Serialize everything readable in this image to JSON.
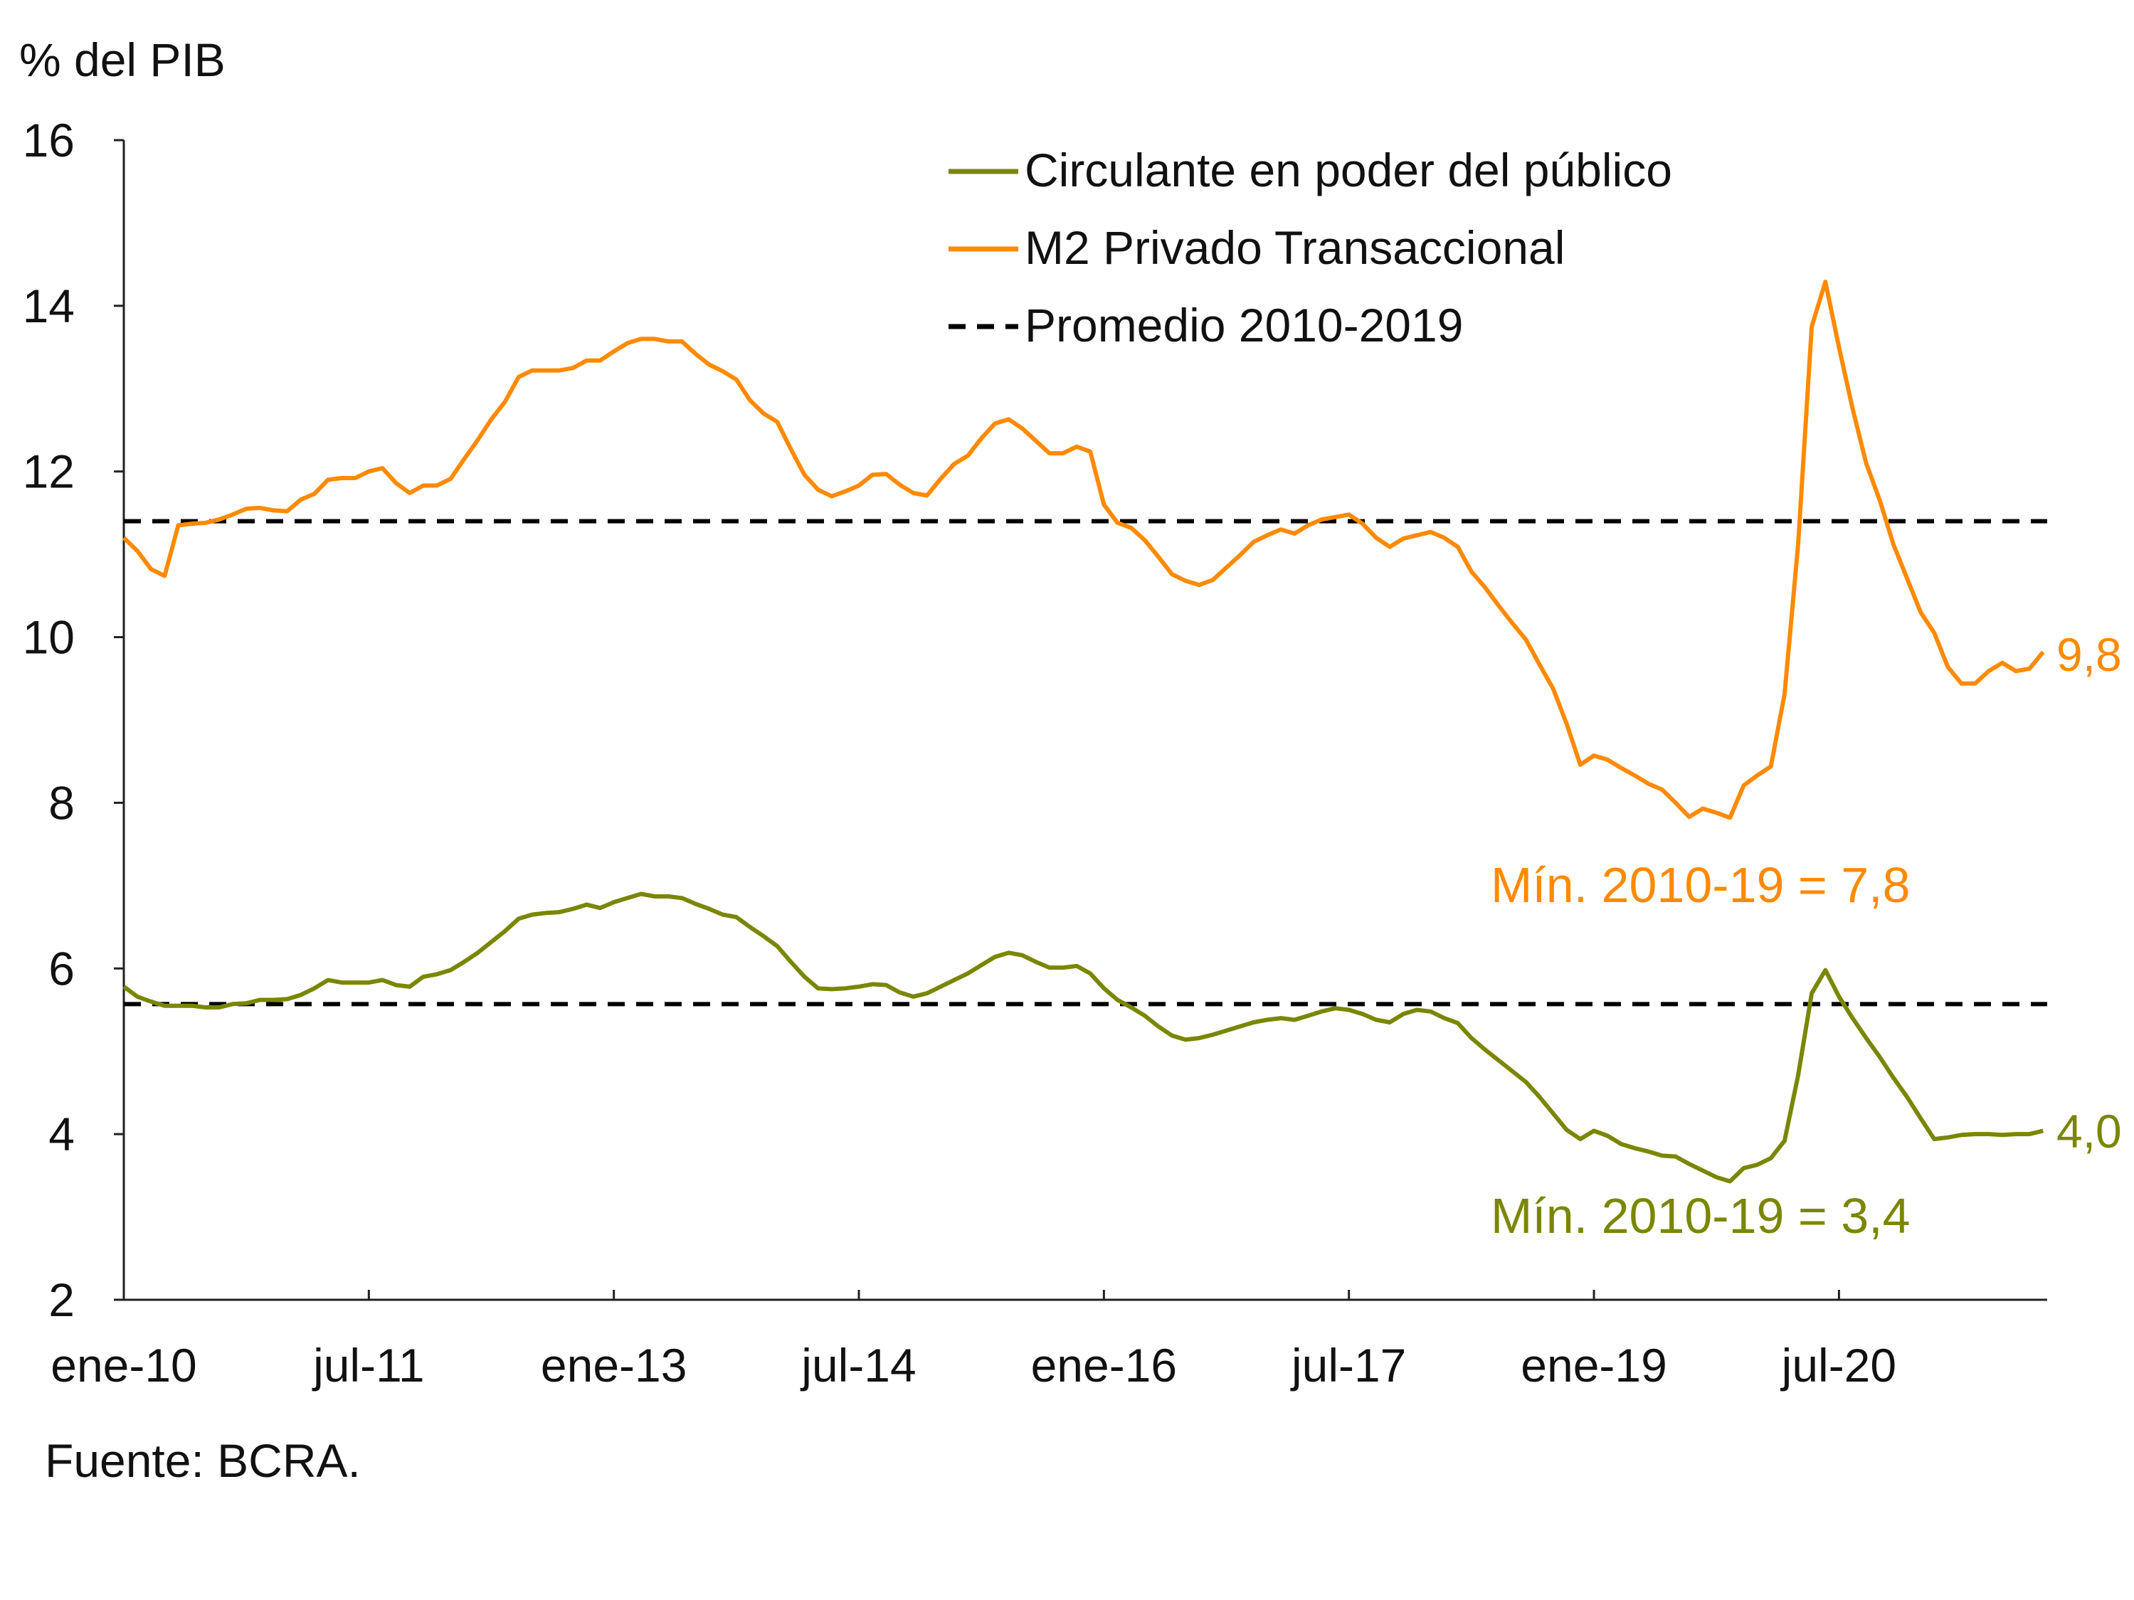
{
  "chart_data": {
    "type": "line",
    "ylabel": "% del PIB",
    "ylim": [
      2,
      16
    ],
    "yticks": [
      "16",
      "14",
      "12",
      "10",
      "8",
      "6",
      "4",
      "2"
    ],
    "xticks": [
      "ene-10",
      "jul-11",
      "ene-13",
      "jul-14",
      "ene-16",
      "jul-17",
      "ene-19",
      "jul-20"
    ],
    "xtick_dates": [
      "2010-01",
      "2011-07",
      "2013-01",
      "2014-07",
      "2016-01",
      "2017-07",
      "2019-01",
      "2020-07"
    ],
    "grid": false,
    "legend_position": "top-right",
    "source": "Fuente: BCRA.",
    "x_frequency": "monthly",
    "x": [
      "2010-01",
      "2010-02",
      "2010-03",
      "2010-04",
      "2010-05",
      "2010-06",
      "2010-07",
      "2010-08",
      "2010-09",
      "2010-10",
      "2010-11",
      "2010-12",
      "2011-01",
      "2011-02",
      "2011-03",
      "2011-04",
      "2011-05",
      "2011-06",
      "2011-07",
      "2011-08",
      "2011-09",
      "2011-10",
      "2011-11",
      "2011-12",
      "2012-01",
      "2012-02",
      "2012-03",
      "2012-04",
      "2012-05",
      "2012-06",
      "2012-07",
      "2012-08",
      "2012-09",
      "2012-10",
      "2012-11",
      "2012-12",
      "2013-01",
      "2013-02",
      "2013-03",
      "2013-04",
      "2013-05",
      "2013-06",
      "2013-07",
      "2013-08",
      "2013-09",
      "2013-10",
      "2013-11",
      "2013-12",
      "2014-01",
      "2014-02",
      "2014-03",
      "2014-04",
      "2014-05",
      "2014-06",
      "2014-07",
      "2014-08",
      "2014-09",
      "2014-10",
      "2014-11",
      "2014-12",
      "2015-01",
      "2015-02",
      "2015-03",
      "2015-04",
      "2015-05",
      "2015-06",
      "2015-07",
      "2015-08",
      "2015-09",
      "2015-10",
      "2015-11",
      "2015-12",
      "2016-01",
      "2016-02",
      "2016-03",
      "2016-04",
      "2016-05",
      "2016-06",
      "2016-07",
      "2016-08",
      "2016-09",
      "2016-10",
      "2016-11",
      "2016-12",
      "2017-01",
      "2017-02",
      "2017-03",
      "2017-04",
      "2017-05",
      "2017-06",
      "2017-07",
      "2017-08",
      "2017-09",
      "2017-10",
      "2017-11",
      "2017-12",
      "2018-01",
      "2018-02",
      "2018-03",
      "2018-04",
      "2018-05",
      "2018-06",
      "2018-07",
      "2018-08",
      "2018-09",
      "2018-10",
      "2018-11",
      "2018-12",
      "2019-01",
      "2019-02",
      "2019-03",
      "2019-04",
      "2019-05",
      "2019-06",
      "2019-07",
      "2019-08",
      "2019-09",
      "2019-10",
      "2019-11",
      "2019-12",
      "2020-01",
      "2020-02",
      "2020-03",
      "2020-04",
      "2020-05",
      "2020-06",
      "2020-07",
      "2020-08",
      "2020-09",
      "2020-10",
      "2020-11",
      "2020-12",
      "2021-01",
      "2021-02",
      "2021-03",
      "2021-04",
      "2021-05",
      "2021-06",
      "2021-07",
      "2021-08",
      "2021-09",
      "2021-10"
    ],
    "series": [
      {
        "name": "Circulante en poder del público",
        "color": "#7B8600",
        "style": "solid",
        "values": [
          5.78,
          5.66,
          5.6,
          5.55,
          5.55,
          5.55,
          5.53,
          5.53,
          5.57,
          5.58,
          5.62,
          5.62,
          5.63,
          5.68,
          5.76,
          5.86,
          5.83,
          5.83,
          5.83,
          5.86,
          5.8,
          5.78,
          5.9,
          5.93,
          5.98,
          6.08,
          6.19,
          6.32,
          6.45,
          6.6,
          6.65,
          6.67,
          6.68,
          6.72,
          6.77,
          6.73,
          6.8,
          6.85,
          6.9,
          6.87,
          6.87,
          6.85,
          6.78,
          6.72,
          6.65,
          6.62,
          6.5,
          6.39,
          6.27,
          6.08,
          5.9,
          5.76,
          5.75,
          5.76,
          5.78,
          5.81,
          5.8,
          5.71,
          5.66,
          5.7,
          5.78,
          5.86,
          5.94,
          6.04,
          6.14,
          6.19,
          6.16,
          6.08,
          6.01,
          6.01,
          6.03,
          5.94,
          5.76,
          5.62,
          5.53,
          5.43,
          5.3,
          5.19,
          5.14,
          5.16,
          5.2,
          5.25,
          5.3,
          5.35,
          5.38,
          5.4,
          5.38,
          5.43,
          5.48,
          5.52,
          5.5,
          5.45,
          5.38,
          5.35,
          5.45,
          5.5,
          5.48,
          5.4,
          5.34,
          5.16,
          5.02,
          4.89,
          4.76,
          4.63,
          4.45,
          4.25,
          4.05,
          3.94,
          4.04,
          3.98,
          3.88,
          3.83,
          3.79,
          3.74,
          3.73,
          3.64,
          3.56,
          3.48,
          3.43,
          3.59,
          3.63,
          3.71,
          3.92,
          4.71,
          5.7,
          5.98,
          5.66,
          5.4,
          5.16,
          4.93,
          4.68,
          4.45,
          4.19,
          3.94,
          3.96,
          3.99,
          4.0,
          4.0,
          3.99,
          4.0,
          4.0,
          4.04
        ]
      },
      {
        "name": "M2 Privado Transaccional",
        "color": "#FF8A00",
        "style": "solid",
        "values": [
          11.2,
          11.04,
          10.82,
          10.74,
          11.35,
          11.37,
          11.38,
          11.42,
          11.48,
          11.55,
          11.56,
          11.53,
          11.52,
          11.66,
          11.73,
          11.9,
          11.92,
          11.92,
          12.0,
          12.04,
          11.86,
          11.74,
          11.83,
          11.83,
          11.91,
          12.15,
          12.38,
          12.63,
          12.84,
          13.14,
          13.22,
          13.22,
          13.22,
          13.25,
          13.34,
          13.34,
          13.45,
          13.55,
          13.6,
          13.6,
          13.57,
          13.57,
          13.42,
          13.29,
          13.21,
          13.11,
          12.86,
          12.7,
          12.6,
          12.27,
          11.96,
          11.78,
          11.7,
          11.76,
          11.83,
          11.96,
          11.97,
          11.84,
          11.74,
          11.71,
          11.91,
          12.09,
          12.19,
          12.4,
          12.58,
          12.63,
          12.52,
          12.37,
          12.22,
          12.22,
          12.3,
          12.24,
          11.6,
          11.38,
          11.32,
          11.17,
          10.97,
          10.76,
          10.68,
          10.63,
          10.69,
          10.84,
          10.99,
          11.15,
          11.23,
          11.3,
          11.25,
          11.35,
          11.42,
          11.45,
          11.48,
          11.37,
          11.2,
          11.09,
          11.19,
          11.23,
          11.27,
          11.2,
          11.09,
          10.79,
          10.6,
          10.38,
          10.17,
          9.97,
          9.67,
          9.38,
          8.95,
          8.46,
          8.57,
          8.52,
          8.42,
          8.33,
          8.23,
          8.16,
          8.0,
          7.83,
          7.93,
          7.88,
          7.82,
          8.21,
          8.33,
          8.44,
          9.31,
          11.12,
          13.75,
          14.29,
          13.5,
          12.76,
          12.1,
          11.65,
          11.12,
          10.71,
          10.3,
          10.05,
          9.64,
          9.44,
          9.44,
          9.59,
          9.69,
          9.59,
          9.62,
          9.82
        ]
      },
      {
        "name": "Promedio 2010-2019",
        "color": "#000000",
        "style": "dashed",
        "lines": [
          {
            "of": "M2 Privado Transaccional",
            "value": 11.4
          },
          {
            "of": "Circulante en poder del público",
            "value": 5.57
          }
        ]
      }
    ],
    "annotations": {
      "m2_last": "9,8",
      "circ_last": "4,0",
      "m2_min": "Mín. 2010-19 = 7,8",
      "circ_min": "Mín. 2010-19 = 3,4"
    }
  }
}
